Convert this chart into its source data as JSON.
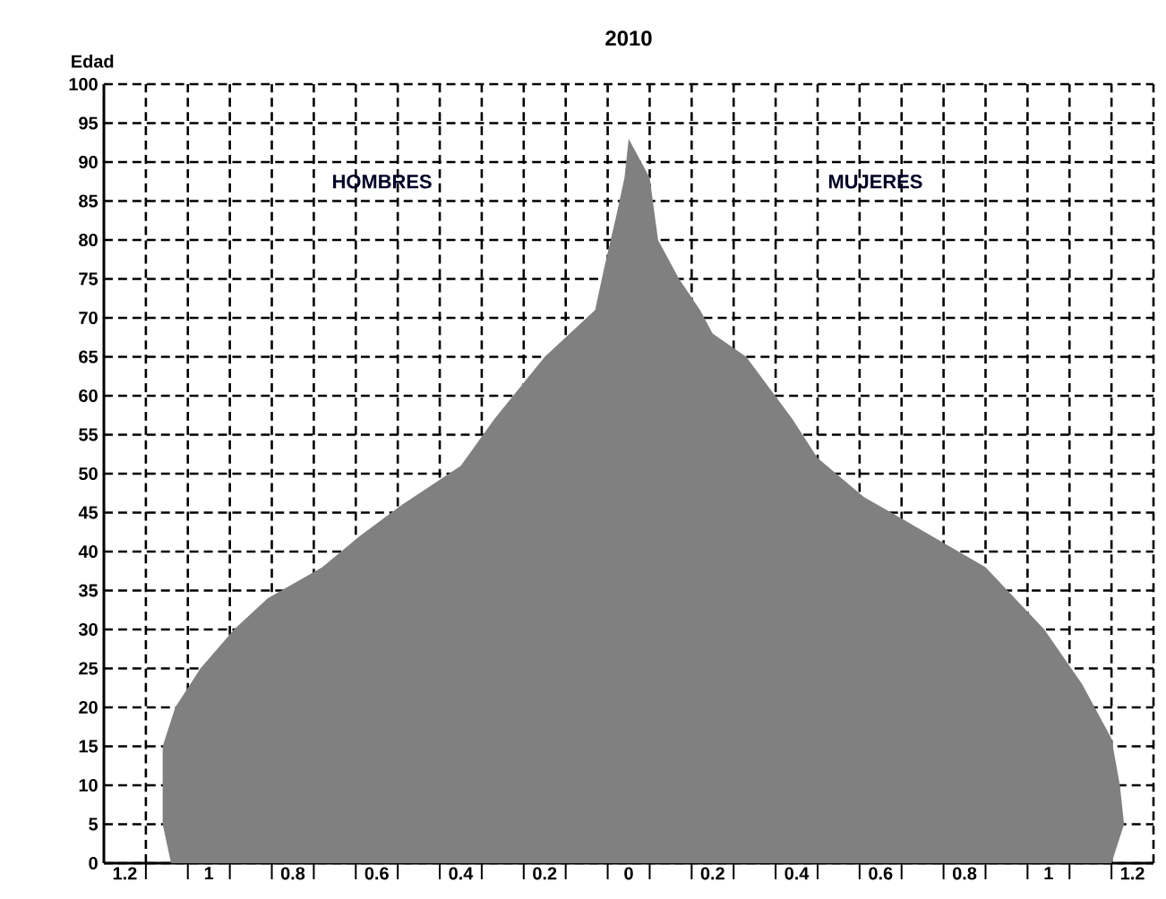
{
  "chart_data": {
    "type": "area",
    "title": "2010",
    "ylabel": "Edad",
    "orientation": "horizontal",
    "grid": true,
    "annotations": [
      "HOMBRES",
      "MUJERES"
    ],
    "xlim": [
      -1.25,
      1.25
    ],
    "ylim": [
      0,
      100
    ],
    "xticks": [
      {
        "value": -1.2,
        "label": "1.2"
      },
      {
        "value": -1,
        "label": "1"
      },
      {
        "value": -0.8,
        "label": "0.8"
      },
      {
        "value": -0.6,
        "label": "0.6"
      },
      {
        "value": -0.4,
        "label": "0.4"
      },
      {
        "value": -0.2,
        "label": "0.2"
      },
      {
        "value": 0,
        "label": "0"
      },
      {
        "value": 0.2,
        "label": "0.2"
      },
      {
        "value": 0.4,
        "label": "0.4"
      },
      {
        "value": 0.6,
        "label": "0.6"
      },
      {
        "value": 0.8,
        "label": "0.8"
      },
      {
        "value": 1,
        "label": "1"
      },
      {
        "value": 1.2,
        "label": "1.2"
      },
      {
        "value": -1.15,
        "label": null
      },
      {
        "value": -1.05,
        "label": null
      },
      {
        "value": -0.95,
        "label": null
      },
      {
        "value": -0.85,
        "label": null
      },
      {
        "value": -0.75,
        "label": null
      },
      {
        "value": -0.65,
        "label": null
      },
      {
        "value": -0.55,
        "label": null
      },
      {
        "value": -0.45,
        "label": null
      },
      {
        "value": -0.35,
        "label": null
      },
      {
        "value": -0.25,
        "label": null
      },
      {
        "value": -0.15,
        "label": null
      },
      {
        "value": -0.05,
        "label": null
      },
      {
        "value": 0.05,
        "label": null
      },
      {
        "value": 0.15,
        "label": null
      },
      {
        "value": 0.25,
        "label": null
      },
      {
        "value": 0.35,
        "label": null
      },
      {
        "value": 0.45,
        "label": null
      },
      {
        "value": 0.55,
        "label": null
      },
      {
        "value": 0.65,
        "label": null
      },
      {
        "value": 0.75,
        "label": null
      },
      {
        "value": 0.85,
        "label": null
      },
      {
        "value": 0.95,
        "label": null
      },
      {
        "value": 1.05,
        "label": null
      },
      {
        "value": 1.15,
        "label": null
      }
    ],
    "yticks": [
      0,
      5,
      10,
      15,
      20,
      25,
      30,
      35,
      40,
      45,
      50,
      55,
      60,
      65,
      70,
      75,
      80,
      85,
      90,
      95,
      100
    ],
    "series": [
      {
        "color": "#808080",
        "x": [
          0,
          5,
          10,
          15,
          20,
          25,
          30,
          34,
          38,
          42,
          46,
          51,
          57,
          65,
          71,
          76,
          83,
          88,
          93
        ],
        "values": [
          -1.09,
          -1.11,
          -1.11,
          -1.11,
          -1.08,
          -1.02,
          -0.94,
          -0.86,
          -0.73,
          -0.64,
          -0.54,
          -0.4,
          -0.32,
          -0.2,
          -0.08,
          -0.06,
          -0.03,
          -0.01,
          0
        ]
      },
      {
        "color": "#808080",
        "x": [
          0,
          5,
          10,
          16,
          23,
          30,
          38,
          43,
          47,
          52,
          57,
          65,
          68,
          71,
          75,
          80,
          88,
          93
        ],
        "values": [
          1.15,
          1.18,
          1.17,
          1.15,
          1.08,
          0.99,
          0.85,
          0.69,
          0.56,
          0.45,
          0.39,
          0.28,
          0.2,
          0.17,
          0.12,
          0.07,
          0.05,
          0
        ]
      }
    ]
  }
}
